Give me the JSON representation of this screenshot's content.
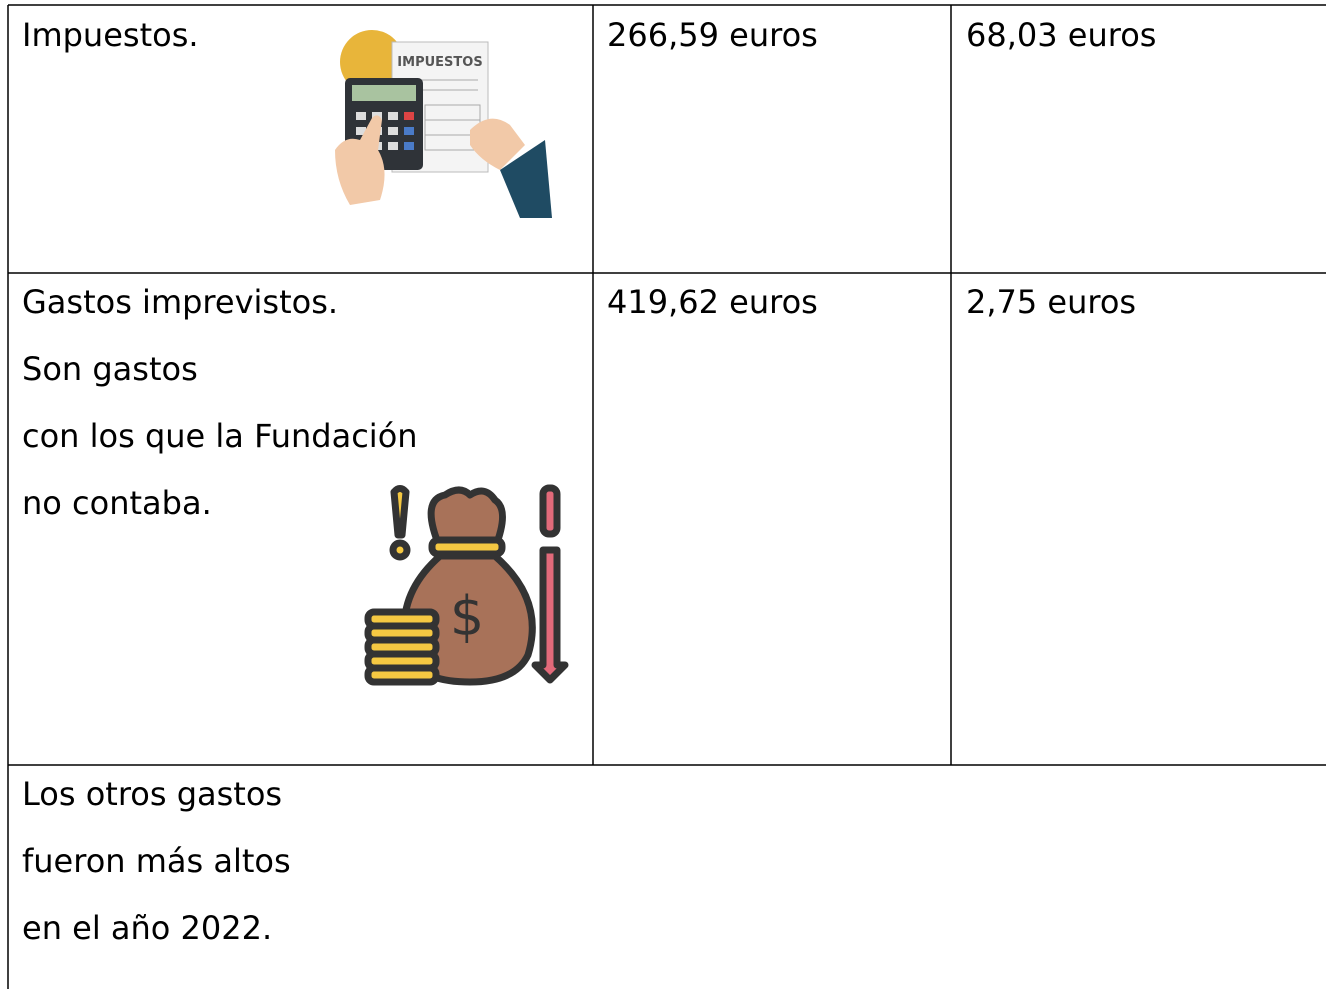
{
  "table": {
    "rows": [
      [
        [
          "Impuestos."
        ],
        [
          "266,59 euros"
        ],
        [
          "68,03 euros"
        ]
      ],
      [
        [
          "Gastos imprevistos.",
          "Son gastos",
          "con los que la Fundación",
          "no contaba."
        ],
        [
          "419,62 euros"
        ],
        [
          "2,75 euros"
        ]
      ]
    ]
  },
  "image_text": {
    "tax_sheet": "IMPUESTOS"
  },
  "note": {
    "lines": [
      "Los otros gastos",
      "fueron más altos",
      "en el año 2022."
    ]
  }
}
